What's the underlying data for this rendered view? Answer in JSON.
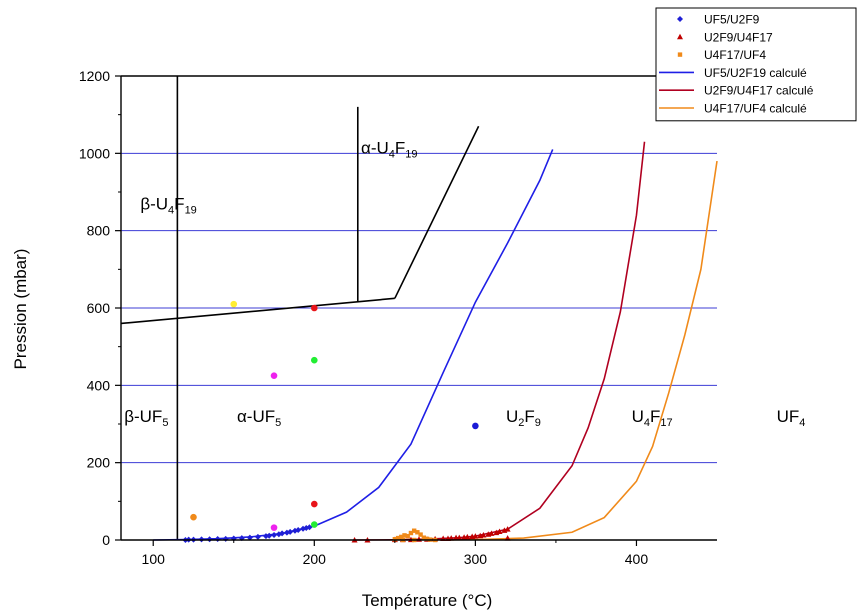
{
  "chart_data": {
    "type": "scatter",
    "xlabel": "Température (°C)",
    "ylabel": "Pression (mbar)",
    "xlim": [
      80,
      450
    ],
    "ylim": [
      0,
      1200
    ],
    "x_ticks": [
      100,
      200,
      300,
      400
    ],
    "y_ticks": [
      0,
      200,
      400,
      600,
      800,
      1000,
      1200
    ],
    "grid": "horizontal",
    "legend_position": "top-right, outside plot",
    "series": [
      {
        "name": "UF5/U2F9",
        "kind": "scatter",
        "marker": "diamond",
        "color": "#1f1fd6",
        "points": [
          [
            120,
            0
          ],
          [
            122,
            1
          ],
          [
            125,
            1
          ],
          [
            130,
            1.5
          ],
          [
            135,
            2
          ],
          [
            140,
            2.5
          ],
          [
            145,
            3
          ],
          [
            150,
            4
          ],
          [
            155,
            5
          ],
          [
            160,
            6
          ],
          [
            165,
            8
          ],
          [
            170,
            10
          ],
          [
            172,
            11
          ],
          [
            175,
            13
          ],
          [
            178,
            15
          ],
          [
            180,
            17
          ],
          [
            183,
            19
          ],
          [
            185,
            21
          ],
          [
            188,
            24
          ],
          [
            190,
            26
          ],
          [
            193,
            29
          ],
          [
            195,
            31
          ],
          [
            197,
            33
          ]
        ]
      },
      {
        "name": "U2F9/U4F17",
        "kind": "scatter",
        "marker": "triangle",
        "color": "#c00000",
        "points": [
          [
            225,
            0
          ],
          [
            233,
            0
          ],
          [
            250,
            1
          ],
          [
            255,
            1
          ],
          [
            260,
            1
          ],
          [
            265,
            2
          ],
          [
            270,
            2
          ],
          [
            275,
            3
          ],
          [
            280,
            4
          ],
          [
            283,
            4
          ],
          [
            285,
            5
          ],
          [
            288,
            6
          ],
          [
            290,
            6
          ],
          [
            293,
            7
          ],
          [
            295,
            8
          ],
          [
            298,
            9
          ],
          [
            300,
            10
          ],
          [
            303,
            11
          ],
          [
            305,
            13
          ],
          [
            308,
            15
          ],
          [
            310,
            17
          ],
          [
            313,
            19
          ],
          [
            315,
            22
          ],
          [
            318,
            25
          ],
          [
            320,
            28
          ],
          [
            320,
            5
          ]
        ]
      },
      {
        "name": "U4F17/UF4",
        "kind": "scatter",
        "marker": "square",
        "color": "#f08a1a",
        "points": [
          [
            250,
            2
          ],
          [
            252,
            5
          ],
          [
            254,
            8
          ],
          [
            256,
            12
          ],
          [
            258,
            10
          ],
          [
            260,
            18
          ],
          [
            262,
            24
          ],
          [
            264,
            20
          ],
          [
            266,
            14
          ],
          [
            268,
            6
          ],
          [
            270,
            3
          ],
          [
            272,
            1
          ],
          [
            255,
            0
          ],
          [
            262,
            0
          ],
          [
            275,
            0
          ]
        ]
      },
      {
        "name": "UF5/U2F19 calculé",
        "kind": "line",
        "color": "#1f1fe6",
        "points": [
          [
            100,
            0
          ],
          [
            120,
            1.3
          ],
          [
            140,
            3.3
          ],
          [
            160,
            7.8
          ],
          [
            180,
            17
          ],
          [
            200,
            36
          ],
          [
            220,
            72
          ],
          [
            240,
            136
          ],
          [
            260,
            248
          ],
          [
            280,
            433
          ],
          [
            300,
            615
          ],
          [
            320,
            768
          ],
          [
            340,
            930
          ],
          [
            348,
            1010
          ]
        ]
      },
      {
        "name": "U2F9/U4F17 calculé",
        "kind": "line",
        "color": "#b00020",
        "points": [
          [
            225,
            0
          ],
          [
            250,
            0.5
          ],
          [
            270,
            2
          ],
          [
            290,
            6
          ],
          [
            300,
            10
          ],
          [
            320,
            28
          ],
          [
            340,
            82
          ],
          [
            360,
            192
          ],
          [
            370,
            290
          ],
          [
            380,
            417
          ],
          [
            390,
            590
          ],
          [
            400,
            840
          ],
          [
            405,
            1030
          ]
        ]
      },
      {
        "name": "U4F17/UF4 calculé",
        "kind": "line",
        "color": "#f08a1a",
        "points": [
          [
            280,
            0
          ],
          [
            300,
            1
          ],
          [
            330,
            5
          ],
          [
            360,
            20
          ],
          [
            380,
            58
          ],
          [
            400,
            152
          ],
          [
            410,
            242
          ],
          [
            420,
            380
          ],
          [
            430,
            530
          ],
          [
            440,
            700
          ],
          [
            450,
            980
          ]
        ]
      }
    ],
    "phase_boundaries": [
      {
        "name": "beta-alpha UF5 boundary",
        "points": [
          [
            115,
            0
          ],
          [
            115,
            1200
          ]
        ]
      },
      {
        "name": "UF5 / U4F19 boundary",
        "points": [
          [
            80,
            560
          ],
          [
            250,
            625
          ]
        ]
      },
      {
        "name": "alpha-U4F19 lower boundary",
        "points": [
          [
            250,
            625
          ],
          [
            302,
            1070
          ]
        ]
      },
      {
        "name": "beta-alpha U4F19 boundary",
        "points": [
          [
            227,
            615
          ],
          [
            227,
            1120
          ]
        ]
      },
      {
        "name": "top frame",
        "points": [
          [
            80,
            1200
          ],
          [
            450,
            1200
          ]
        ]
      }
    ],
    "extra_points": [
      {
        "x": 150,
        "y": 610,
        "color": "#ffee33"
      },
      {
        "x": 200,
        "y": 600,
        "color": "#e8141a"
      },
      {
        "x": 200,
        "y": 465,
        "color": "#22ee33"
      },
      {
        "x": 175,
        "y": 425,
        "color": "#ee22ee"
      },
      {
        "x": 300,
        "y": 295,
        "color": "#1a1ad6"
      },
      {
        "x": 200,
        "y": 93,
        "color": "#e8141a"
      },
      {
        "x": 125,
        "y": 59,
        "color": "#f08a1a"
      },
      {
        "x": 200,
        "y": 40,
        "color": "#22ee33"
      },
      {
        "x": 175,
        "y": 32,
        "color": "#ee22ee"
      }
    ],
    "annotations": [
      {
        "parts": [
          {
            "t": "β-U"
          },
          {
            "t": "4",
            "sub": true
          },
          {
            "t": "F"
          },
          {
            "t": "19",
            "sub": true
          }
        ],
        "x": 92,
        "y": 855
      },
      {
        "parts": [
          {
            "t": "α-U"
          },
          {
            "t": "4",
            "sub": true
          },
          {
            "t": "F"
          },
          {
            "t": "19",
            "sub": true
          }
        ],
        "x": 229,
        "y": 1000
      },
      {
        "parts": [
          {
            "t": "β-UF"
          },
          {
            "t": "5",
            "sub": true
          }
        ],
        "x": 82,
        "y": 305
      },
      {
        "parts": [
          {
            "t": "α-UF"
          },
          {
            "t": "5",
            "sub": true
          }
        ],
        "x": 152,
        "y": 305
      },
      {
        "parts": [
          {
            "t": "U"
          },
          {
            "t": "2",
            "sub": true
          },
          {
            "t": "F"
          },
          {
            "t": "9",
            "sub": true
          }
        ],
        "x": 319,
        "y": 305
      },
      {
        "parts": [
          {
            "t": "U"
          },
          {
            "t": "4",
            "sub": true
          },
          {
            "t": "F"
          },
          {
            "t": "17",
            "sub": true
          }
        ],
        "x": 397,
        "y": 305
      },
      {
        "parts": [
          {
            "t": "UF"
          },
          {
            "t": "4",
            "sub": true
          }
        ],
        "x": 487,
        "y": 305
      }
    ]
  }
}
